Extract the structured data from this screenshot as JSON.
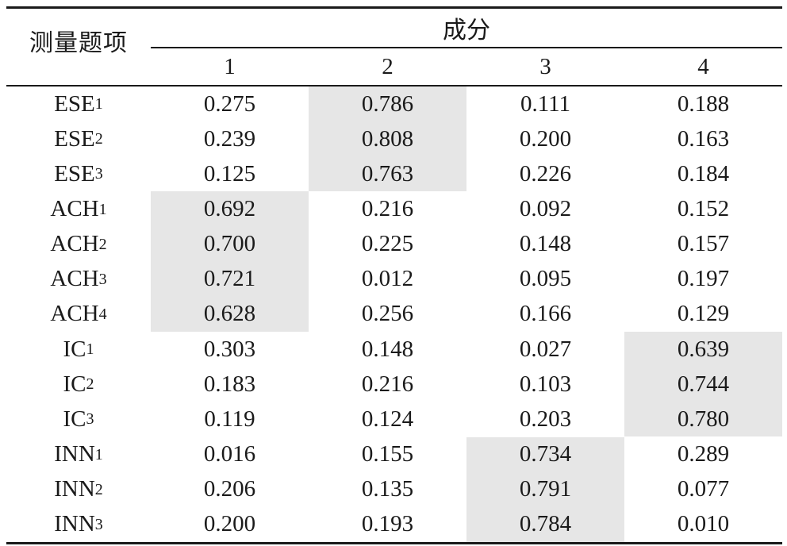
{
  "header": {
    "item_label": "测量题项",
    "factor_label": "成分",
    "columns": [
      "1",
      "2",
      "3",
      "4"
    ]
  },
  "highlight_color": "#e6e6e6",
  "rows": [
    {
      "name": "ESE",
      "sub": "1",
      "values": [
        "0.275",
        "0.786",
        "0.111",
        "0.188"
      ],
      "highlight": 1
    },
    {
      "name": "ESE",
      "sub": "2",
      "values": [
        "0.239",
        "0.808",
        "0.200",
        "0.163"
      ],
      "highlight": 1
    },
    {
      "name": "ESE",
      "sub": "3",
      "values": [
        "0.125",
        "0.763",
        "0.226",
        "0.184"
      ],
      "highlight": 1
    },
    {
      "name": "ACH",
      "sub": "1",
      "values": [
        "0.692",
        "0.216",
        "0.092",
        "0.152"
      ],
      "highlight": 0
    },
    {
      "name": "ACH",
      "sub": "2",
      "values": [
        "0.700",
        "0.225",
        "0.148",
        "0.157"
      ],
      "highlight": 0
    },
    {
      "name": "ACH",
      "sub": "3",
      "values": [
        "0.721",
        "0.012",
        "0.095",
        "0.197"
      ],
      "highlight": 0
    },
    {
      "name": "ACH",
      "sub": "4",
      "values": [
        "0.628",
        "0.256",
        "0.166",
        "0.129"
      ],
      "highlight": 0
    },
    {
      "name": "IC",
      "sub": "1",
      "values": [
        "0.303",
        "0.148",
        "0.027",
        "0.639"
      ],
      "highlight": 3
    },
    {
      "name": "IC",
      "sub": "2",
      "values": [
        "0.183",
        "0.216",
        "0.103",
        "0.744"
      ],
      "highlight": 3
    },
    {
      "name": "IC",
      "sub": "3",
      "values": [
        "0.119",
        "0.124",
        "0.203",
        "0.780"
      ],
      "highlight": 3
    },
    {
      "name": "INN",
      "sub": "1",
      "values": [
        "0.016",
        "0.155",
        "0.734",
        "0.289"
      ],
      "highlight": 2
    },
    {
      "name": "INN",
      "sub": "2",
      "values": [
        "0.206",
        "0.135",
        "0.791",
        "0.077"
      ],
      "highlight": 2
    },
    {
      "name": "INN",
      "sub": "3",
      "values": [
        "0.200",
        "0.193",
        "0.784",
        "0.010"
      ],
      "highlight": 2
    }
  ]
}
